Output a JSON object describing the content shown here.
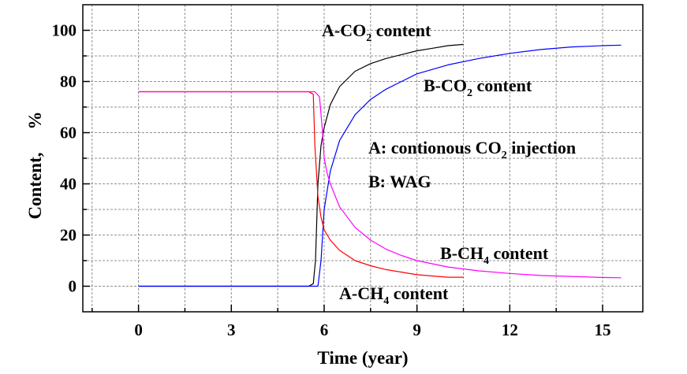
{
  "chart_data": {
    "type": "line",
    "xlabel": "Time (year)",
    "ylabel": "Content,",
    "ylabel_unit": "%",
    "xlim": [
      -1.8,
      16.3
    ],
    "ylim": [
      -10,
      110
    ],
    "xticks": [
      0,
      3,
      6,
      9,
      12,
      15
    ],
    "yticks": [
      0,
      20,
      40,
      60,
      80,
      100
    ],
    "xtick_labels": [
      "0",
      "3",
      "6",
      "9",
      "12",
      "15"
    ],
    "ytick_labels": [
      "0",
      "20",
      "40",
      "60",
      "80",
      "100"
    ],
    "grid": true,
    "colors": {
      "A-CO2": "#000000",
      "B-CO2": "#0000ff",
      "A-CH4": "#ff0000",
      "B-CH4": "#ff00ff"
    },
    "series": [
      {
        "key": "A-CO2",
        "x": [
          0,
          5.5,
          5.65,
          5.72,
          5.8,
          5.9,
          6.0,
          6.2,
          6.5,
          7.0,
          7.5,
          8.0,
          8.5,
          9.0,
          9.5,
          10.0,
          10.5
        ],
        "y": [
          0,
          0,
          1,
          10,
          40,
          55,
          62,
          71,
          78,
          84,
          87,
          89,
          90.5,
          92,
          93,
          94,
          94.5
        ]
      },
      {
        "key": "B-CO2",
        "x": [
          0,
          5.8,
          5.9,
          6.0,
          6.2,
          6.5,
          7.0,
          7.5,
          8.0,
          8.5,
          9.0,
          10.0,
          11.0,
          12.0,
          13.0,
          14.0,
          15.0,
          15.6
        ],
        "y": [
          0,
          0,
          10,
          30,
          45,
          57,
          67,
          73,
          77,
          80,
          83,
          86.5,
          89,
          91,
          92.5,
          93.5,
          94,
          94.2
        ]
      },
      {
        "key": "A-CH4",
        "x": [
          0,
          5.5,
          5.65,
          5.7,
          5.8,
          5.9,
          6.0,
          6.2,
          6.5,
          7.0,
          7.5,
          8.0,
          8.5,
          9.0,
          9.5,
          10.0,
          10.5
        ],
        "y": [
          76,
          76,
          75,
          55,
          35,
          27,
          22,
          18,
          14,
          10,
          8,
          6.5,
          5.5,
          4.5,
          4,
          3.5,
          3.5
        ]
      },
      {
        "key": "B-CH4",
        "x": [
          0,
          5.7,
          5.85,
          5.95,
          6.0,
          6.1,
          6.2,
          6.5,
          7.0,
          7.5,
          8.0,
          8.5,
          9.0,
          10.0,
          11.0,
          12.0,
          13.0,
          14.0,
          15.0,
          15.6
        ],
        "y": [
          76,
          76,
          74,
          60,
          50,
          44,
          40,
          31,
          23,
          18,
          14.5,
          12,
          10,
          7.5,
          6,
          5,
          4.2,
          3.8,
          3.4,
          3.3
        ]
      }
    ],
    "annotations": {
      "a_co2": {
        "prefix": "A-CO",
        "sub": "2",
        "suffix": " content"
      },
      "b_co2": {
        "prefix": "B-CO",
        "sub": "2",
        "suffix": " content"
      },
      "a_ch4": {
        "prefix": "A-CH",
        "sub": "4",
        "suffix": " content"
      },
      "b_ch4": {
        "prefix": "B-CH",
        "sub": "4",
        "suffix": " content"
      },
      "legend_a": {
        "prefix": "A: contionous CO",
        "sub": "2",
        "suffix": " injection"
      },
      "legend_b": {
        "text": "B: WAG"
      }
    }
  }
}
